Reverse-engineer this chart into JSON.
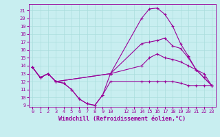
{
  "background_color": "#c8eef0",
  "grid_color": "#aadddd",
  "line_color": "#990099",
  "xlabel": "Windchill (Refroidissement éolien,°C)",
  "xlim": [
    -0.5,
    23.5
  ],
  "ylim": [
    8.8,
    21.8
  ],
  "yticks": [
    9,
    10,
    11,
    12,
    13,
    14,
    15,
    16,
    17,
    18,
    19,
    20,
    21
  ],
  "xticks": [
    0,
    1,
    2,
    3,
    4,
    5,
    6,
    7,
    8,
    9,
    10,
    12,
    13,
    14,
    15,
    16,
    17,
    18,
    19,
    20,
    21,
    22,
    23
  ],
  "line1_x": [
    0,
    1,
    2,
    3,
    4,
    5,
    6,
    7,
    8,
    9,
    10,
    14,
    15,
    16,
    17,
    18,
    19,
    20,
    21,
    22,
    23
  ],
  "line1_y": [
    13.8,
    12.5,
    13.0,
    12.0,
    11.8,
    11.0,
    9.8,
    9.2,
    9.0,
    10.3,
    13.0,
    20.0,
    21.2,
    21.3,
    20.5,
    19.0,
    16.8,
    15.2,
    13.5,
    12.5,
    11.5
  ],
  "line2_x": [
    0,
    1,
    2,
    3,
    10,
    14,
    15,
    16,
    17,
    18,
    19,
    20,
    21,
    22,
    23
  ],
  "line2_y": [
    13.8,
    12.5,
    13.0,
    12.0,
    13.0,
    16.8,
    17.0,
    17.2,
    17.5,
    16.5,
    16.2,
    15.0,
    13.5,
    13.0,
    11.5
  ],
  "line3_x": [
    0,
    1,
    2,
    3,
    10,
    14,
    15,
    16,
    17,
    18,
    19,
    20,
    21,
    22,
    23
  ],
  "line3_y": [
    13.8,
    12.5,
    13.0,
    12.0,
    13.0,
    14.0,
    15.0,
    15.5,
    15.0,
    14.8,
    14.5,
    14.0,
    13.5,
    12.5,
    11.5
  ],
  "line4_x": [
    0,
    1,
    2,
    3,
    4,
    5,
    6,
    7,
    8,
    9,
    10,
    14,
    15,
    16,
    17,
    18,
    19,
    20,
    21,
    22,
    23
  ],
  "line4_y": [
    13.8,
    12.5,
    13.0,
    12.0,
    11.8,
    11.0,
    9.8,
    9.2,
    9.0,
    10.3,
    12.0,
    12.0,
    12.0,
    12.0,
    12.0,
    12.0,
    11.8,
    11.5,
    11.5,
    11.5,
    11.5
  ],
  "tick_fontsize": 5.0,
  "xlabel_fontsize": 6.0,
  "lw": 0.8,
  "marker_size": 3.5
}
